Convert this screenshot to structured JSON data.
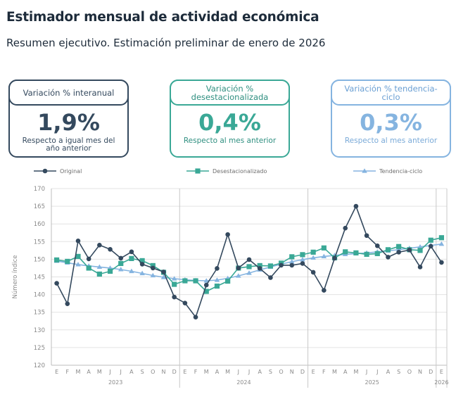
{
  "title": "Estimador mensual de actividad económica",
  "subtitle": "Resumen ejecutivo. Estimación preliminar de enero de 2026",
  "cards": [
    {
      "header": "Variación % interanual",
      "value": "1,9%",
      "note": "Respecto a igual mes del año anterior",
      "color": "#34495e"
    },
    {
      "header": "Variación % desestacionalizada",
      "value": "0,4%",
      "note": "Respecto al mes anterior",
      "color": "#3aa896"
    },
    {
      "header": "Variación % tendencia-ciclo",
      "value": "0,3%",
      "note": "Respecto al mes anterior",
      "color": "#85b4e0"
    }
  ],
  "chart_data": {
    "type": "line",
    "ylabel": "Número índice",
    "ylim": [
      120,
      170
    ],
    "yticks": [
      120,
      125,
      130,
      135,
      140,
      145,
      150,
      155,
      160,
      165,
      170
    ],
    "month_labels": [
      "E",
      "F",
      "M",
      "A",
      "M",
      "J",
      "J",
      "A",
      "S",
      "O",
      "N",
      "D",
      "E",
      "F",
      "M",
      "A",
      "M",
      "J",
      "J",
      "A",
      "S",
      "O",
      "N",
      "D",
      "E",
      "F",
      "M",
      "A",
      "M",
      "J",
      "J",
      "A",
      "S",
      "O",
      "N",
      "D",
      "E"
    ],
    "year_labels": [
      {
        "label": "2023",
        "start": 0,
        "end": 11
      },
      {
        "label": "2024",
        "start": 12,
        "end": 23
      },
      {
        "label": "2025",
        "start": 24,
        "end": 35
      },
      {
        "label": "2026",
        "start": 36,
        "end": 36
      }
    ],
    "grid": true,
    "legend_position": "top",
    "series": [
      {
        "name": "Original",
        "color": "#34495e",
        "marker": "circle",
        "values": [
          143.2,
          137.4,
          155.2,
          150.1,
          154.0,
          152.8,
          150.3,
          152.1,
          148.6,
          147.5,
          146.4,
          139.3,
          137.6,
          133.6,
          142.7,
          147.4,
          157.0,
          147.5,
          149.9,
          147.4,
          144.8,
          148.3,
          148.3,
          148.8,
          146.3,
          141.2,
          150.3,
          158.8,
          165.0,
          156.7,
          153.8,
          150.6,
          152.0,
          152.6,
          147.8,
          153.7,
          149.1
        ]
      },
      {
        "name": "Desestacionalizado",
        "color": "#3aa896",
        "marker": "square",
        "values": [
          149.8,
          149.4,
          150.8,
          147.5,
          145.8,
          146.6,
          148.8,
          150.2,
          149.6,
          148.2,
          146.3,
          142.9,
          143.9,
          143.9,
          140.9,
          142.4,
          143.8,
          147.5,
          147.9,
          148.2,
          148.1,
          148.9,
          150.7,
          151.3,
          152.0,
          153.2,
          150.4,
          152.1,
          151.8,
          151.4,
          151.6,
          152.7,
          153.6,
          152.7,
          152.5,
          155.4,
          156.1
        ]
      },
      {
        "name": "Tendencia-ciclo",
        "color": "#85b4e0",
        "marker": "triangle",
        "values": [
          149.5,
          149.0,
          148.5,
          148.1,
          147.8,
          147.5,
          147.1,
          146.6,
          146.0,
          145.4,
          144.9,
          144.5,
          144.2,
          144.0,
          143.9,
          144.1,
          144.6,
          145.3,
          146.1,
          147.0,
          147.8,
          148.6,
          149.3,
          149.9,
          150.4,
          150.8,
          151.1,
          151.4,
          151.6,
          151.8,
          152.1,
          152.4,
          152.7,
          153.1,
          153.5,
          153.9,
          154.3
        ]
      }
    ]
  }
}
